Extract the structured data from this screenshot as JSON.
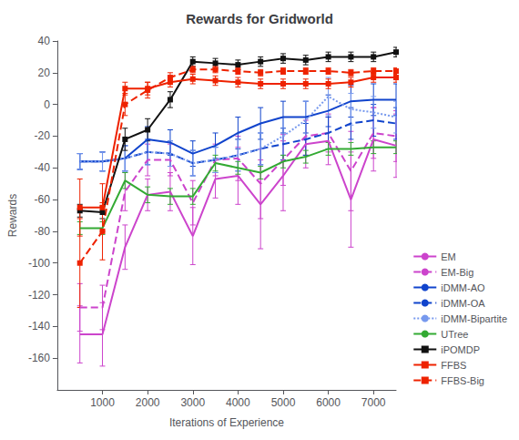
{
  "chart_data": {
    "type": "line",
    "title": "Rewards for Gridworld",
    "xlabel": "Iterations of Experience",
    "ylabel": "Rewards",
    "xlim": [
      0,
      7500
    ],
    "ylim": [
      -180,
      40
    ],
    "xticks": [
      1000,
      2000,
      3000,
      4000,
      5000,
      6000,
      7000
    ],
    "yticks": [
      -160,
      -140,
      -120,
      -100,
      -80,
      -60,
      -40,
      -20,
      0,
      20,
      40
    ],
    "grid": false,
    "legend": "lower right",
    "x": [
      500,
      1000,
      1500,
      2000,
      2500,
      3000,
      3500,
      4000,
      4500,
      5000,
      5500,
      6000,
      6500,
      7000,
      7500
    ],
    "series": [
      {
        "name": "EM",
        "color": "#cc44cc",
        "line_style": "solid",
        "values": [
          -145,
          -145,
          -90,
          -57,
          -55,
          -83,
          -47,
          -45,
          -63,
          -45,
          -25,
          -23,
          -60,
          -22,
          -26
        ],
        "yerr": [
          18,
          20,
          14,
          10,
          12,
          18,
          12,
          18,
          28,
          22,
          15,
          15,
          30,
          20,
          20
        ]
      },
      {
        "name": "EM-Big",
        "color": "#cc44cc",
        "line_style": "dashed",
        "values": [
          -128,
          -128,
          -55,
          -35,
          -35,
          -62,
          -35,
          -34,
          -50,
          -35,
          -20,
          -18,
          -42,
          -18,
          -20
        ],
        "yerr": [
          15,
          14,
          12,
          10,
          10,
          14,
          10,
          14,
          22,
          16,
          12,
          12,
          25,
          16,
          16
        ]
      },
      {
        "name": "iDMM-AO",
        "color": "#1144cc",
        "line_style": "solid",
        "values": [
          -36,
          -36,
          -34,
          -22,
          -24,
          -31,
          -26,
          -18,
          -12,
          -8,
          -8,
          -4,
          2,
          3,
          3
        ],
        "yerr": [
          5,
          6,
          8,
          8,
          8,
          8,
          8,
          10,
          10,
          10,
          10,
          10,
          10,
          10,
          10
        ]
      },
      {
        "name": "iDMM-OA",
        "color": "#1144cc",
        "line_style": "dashed",
        "values": [
          -36,
          -36,
          -34,
          -30,
          -31,
          -37,
          -35,
          -32,
          -28,
          -25,
          -22,
          -18,
          -12,
          -10,
          -12
        ],
        "yerr": [
          5,
          6,
          8,
          8,
          8,
          8,
          8,
          10,
          10,
          10,
          10,
          10,
          10,
          10,
          10
        ]
      },
      {
        "name": "iDMM-Bipartite",
        "color": "#7799ee",
        "line_style": "dotted",
        "values": [
          -36,
          -36,
          -34,
          -30,
          -31,
          -37,
          -35,
          -32,
          -28,
          -20,
          -10,
          5,
          -3,
          -5,
          -8
        ],
        "yerr": [
          5,
          6,
          8,
          8,
          8,
          8,
          8,
          10,
          10,
          12,
          12,
          12,
          10,
          10,
          10
        ]
      },
      {
        "name": "UTree",
        "color": "#33aa33",
        "line_style": "solid",
        "values": [
          -78,
          -78,
          -48,
          -57,
          -58,
          -58,
          -37,
          -40,
          -43,
          -36,
          -33,
          -28,
          -28,
          -27,
          -27
        ],
        "yerr": [
          4,
          4,
          5,
          5,
          5,
          5,
          5,
          4,
          4,
          4,
          4,
          4,
          4,
          4,
          4
        ]
      },
      {
        "name": "iPOMDP",
        "color": "#111111",
        "line_style": "solid",
        "marker": "square",
        "values": [
          -67,
          -68,
          -22,
          -16,
          3,
          27,
          26,
          25,
          27,
          29,
          28,
          30,
          30,
          30,
          33
        ],
        "yerr": [
          4,
          4,
          7,
          7,
          5,
          3,
          3,
          3,
          3,
          3,
          3,
          3,
          3,
          3,
          3
        ]
      },
      {
        "name": "FFBS",
        "color": "#ee2200",
        "line_style": "solid",
        "marker": "square",
        "values": [
          -65,
          -65,
          10,
          10,
          14,
          16,
          15,
          14,
          13,
          13,
          13,
          13,
          14,
          17,
          17
        ],
        "yerr": [
          18,
          15,
          4,
          4,
          3,
          3,
          3,
          3,
          3,
          3,
          3,
          3,
          3,
          3,
          3
        ]
      },
      {
        "name": "FFBS-Big",
        "color": "#ee2200",
        "line_style": "dashed",
        "marker": "square",
        "values": [
          -100,
          -80,
          0,
          9,
          17,
          22,
          22,
          21,
          20,
          21,
          21,
          21,
          20,
          21,
          21
        ],
        "yerr": [
          28,
          18,
          7,
          5,
          3,
          2,
          2,
          2,
          2,
          2,
          2,
          2,
          2,
          2,
          2
        ]
      }
    ]
  }
}
